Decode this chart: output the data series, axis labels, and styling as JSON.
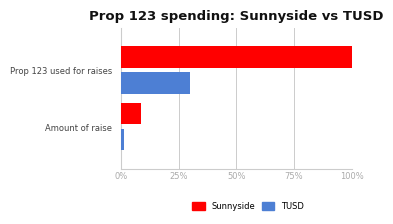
{
  "title": "Prop 123 spending: Sunnyside vs TUSD",
  "categories": [
    "Prop 123 used for raises",
    "Amount of raise"
  ],
  "sunnyside_values": [
    100,
    8.5
  ],
  "tusd_values": [
    30,
    1
  ],
  "sunnyside_color": "#ff0000",
  "tusd_color": "#4d7fd4",
  "xlim": [
    0,
    100
  ],
  "xticks": [
    0,
    25,
    50,
    75,
    100
  ],
  "xtick_labels": [
    "0%",
    "25%",
    "50%",
    "75%",
    "100%"
  ],
  "legend_labels": [
    "Sunnyside",
    "TUSD"
  ],
  "background_color": "#ffffff",
  "bar_height": 0.38,
  "bar_gap": 0.08,
  "title_fontsize": 9.5,
  "label_fontsize": 6.0,
  "tick_fontsize": 6.0,
  "grid_color": "#cccccc",
  "spine_color": "#cccccc"
}
